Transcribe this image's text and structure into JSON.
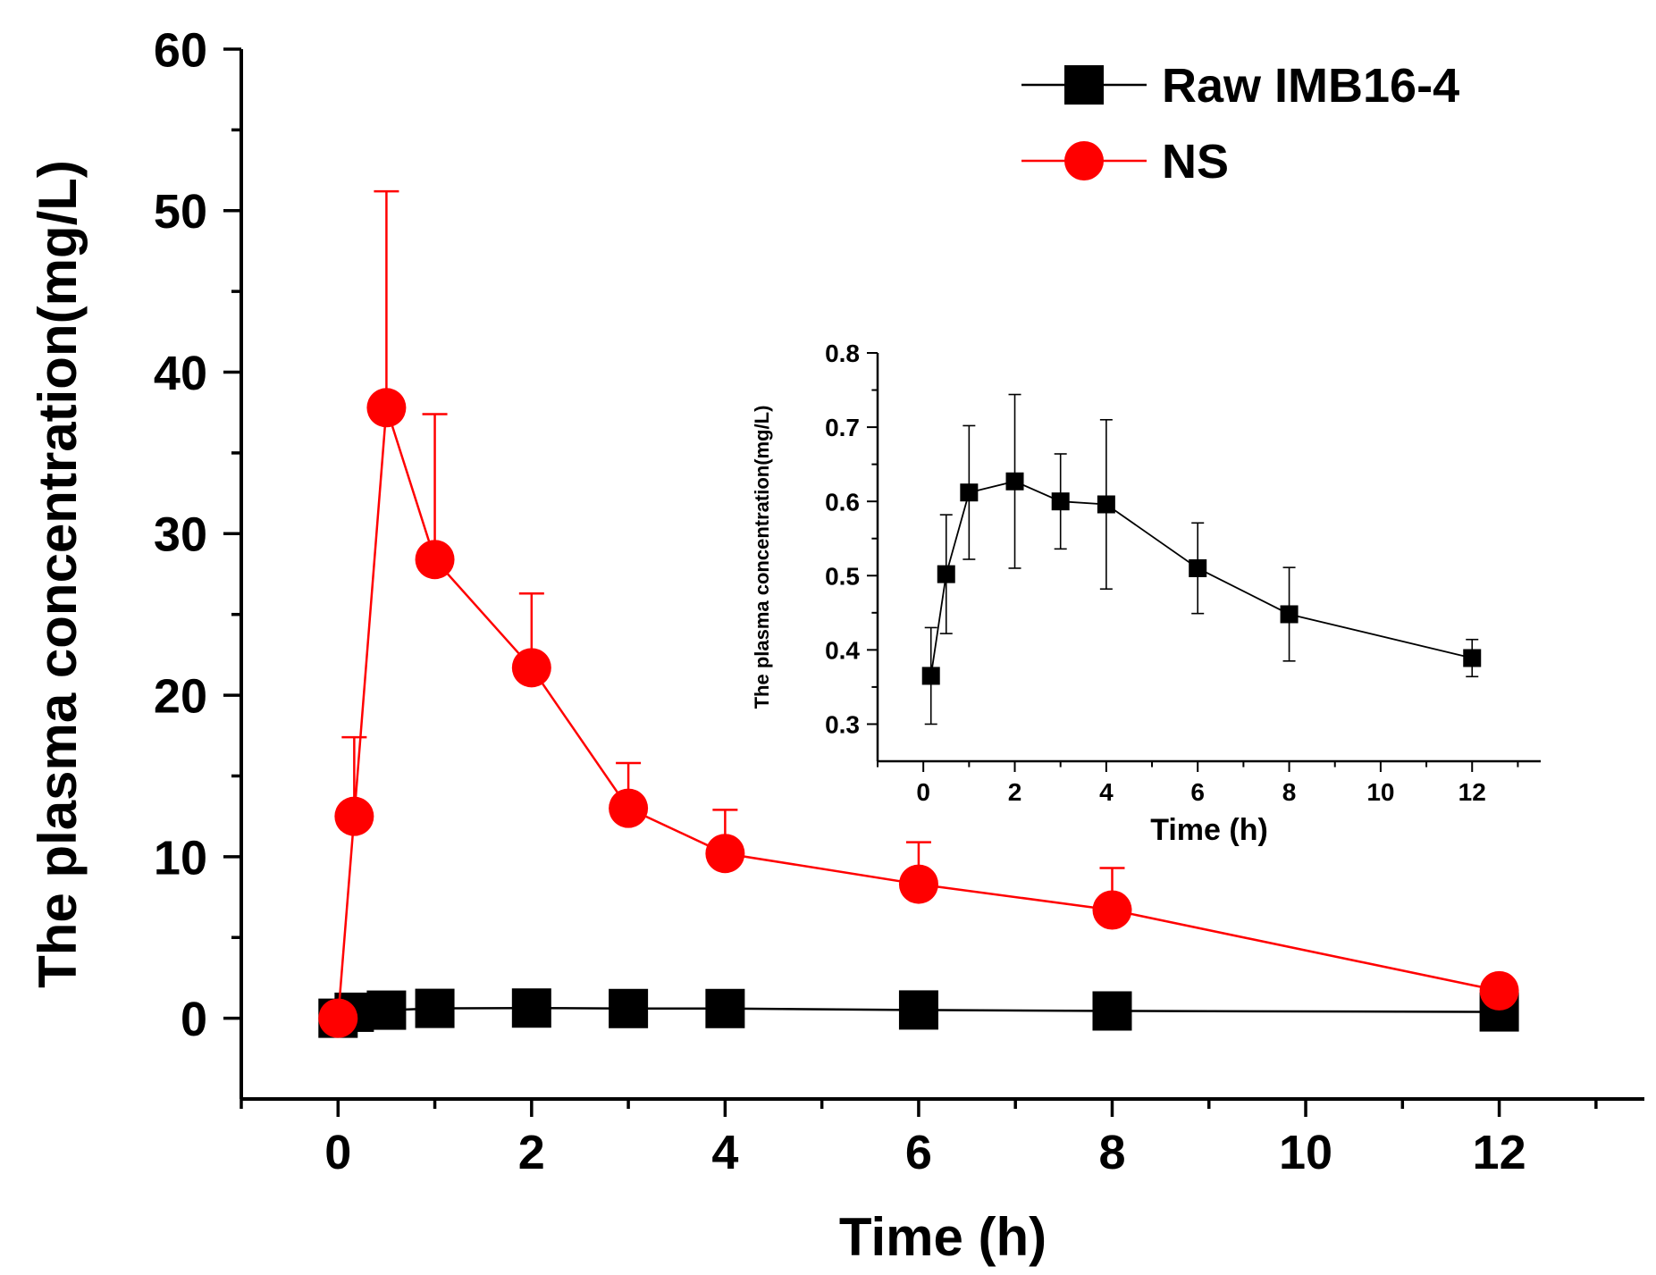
{
  "chart_data": [
    {
      "type": "line",
      "title": "",
      "xlabel": "Time (h)",
      "ylabel": "The plasma concentration(mg/L)",
      "xlim": [
        -1,
        13.5
      ],
      "ylim": [
        -5,
        60
      ],
      "xticks": [
        0,
        2,
        4,
        6,
        8,
        10,
        12
      ],
      "yticks": [
        0,
        10,
        20,
        30,
        40,
        50,
        60
      ],
      "grid": false,
      "legend_position": "top-right",
      "series": [
        {
          "name": "Raw IMB16-4",
          "color": "#000000",
          "marker": "square",
          "x": [
            0,
            0.167,
            0.5,
            1,
            2,
            3,
            4,
            6,
            8,
            12
          ],
          "y": [
            0,
            0.37,
            0.5,
            0.61,
            0.63,
            0.6,
            0.6,
            0.51,
            0.45,
            0.39
          ],
          "error": [
            0,
            0.07,
            0.08,
            0.09,
            0.12,
            0.06,
            0.11,
            0.06,
            0.06,
            0.02
          ]
        },
        {
          "name": "NS",
          "color": "#ff0000",
          "marker": "circle",
          "x": [
            0,
            0.167,
            0.5,
            1,
            2,
            3,
            4,
            6,
            8,
            12
          ],
          "y": [
            0,
            12.5,
            37.8,
            28.4,
            21.7,
            13.0,
            10.2,
            8.3,
            6.7,
            1.7
          ],
          "error": [
            0,
            4.9,
            13.4,
            9.0,
            4.6,
            2.8,
            2.7,
            2.6,
            2.6,
            0
          ]
        }
      ]
    },
    {
      "type": "line",
      "title": "",
      "xlabel": "Time (h)",
      "ylabel": "The plasma concentration(mg/L)",
      "xlim": [
        -1,
        13.5
      ],
      "ylim": [
        0.25,
        0.8
      ],
      "xticks": [
        0,
        2,
        4,
        6,
        8,
        10,
        12
      ],
      "yticks": [
        0.3,
        0.4,
        0.5,
        0.6,
        0.7,
        0.8
      ],
      "ytick_labels": [
        "0.3",
        "0.4",
        "0.5",
        "0.6",
        "0.7",
        "0.8"
      ],
      "grid": false,
      "series": [
        {
          "name": "Raw IMB16-4",
          "color": "#000000",
          "marker": "square",
          "x": [
            0.167,
            0.5,
            1,
            2,
            3,
            4,
            6,
            8,
            12
          ],
          "y": [
            0.365,
            0.502,
            0.612,
            0.627,
            0.6,
            0.596,
            0.51,
            0.448,
            0.389
          ],
          "error": [
            0.065,
            0.08,
            0.09,
            0.117,
            0.064,
            0.114,
            0.061,
            0.063,
            0.025
          ]
        }
      ]
    }
  ]
}
